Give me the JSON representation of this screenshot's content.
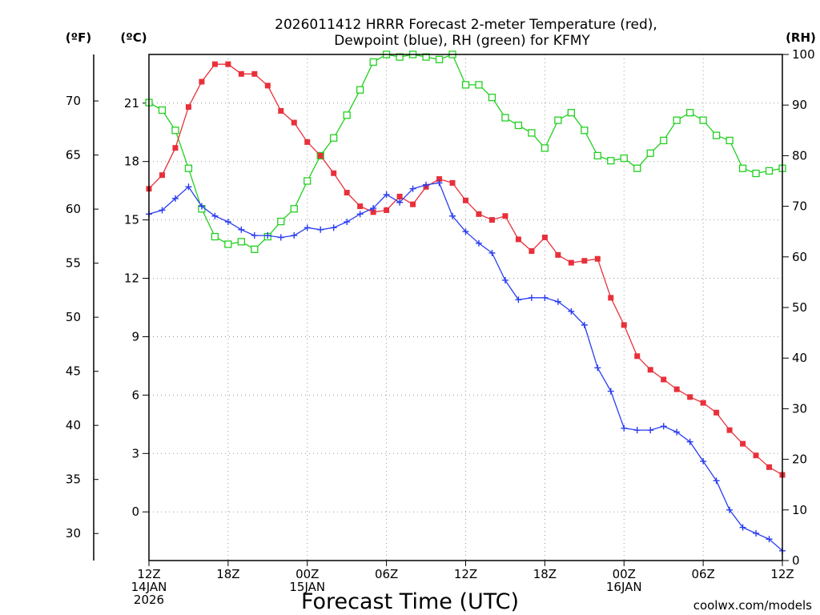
{
  "title_lines": [
    "2026011412 HRRR Forecast 2-meter Temperature (red),",
    "Dewpoint (blue), RH (green) for KFMY"
  ],
  "units": {
    "f": "(ºF)",
    "c": "(ºC)",
    "rh": "(RH)"
  },
  "xlabel": "Forecast Time (UTC)",
  "credit": "coolwx.com/models",
  "colors": {
    "temperature": "#e8303a",
    "dewpoint": "#2a3df0",
    "rh": "#22d020",
    "credit": "#d03040",
    "grid": "#9a9a9a"
  },
  "chart_data": {
    "type": "line",
    "title": "2026011412 HRRR Forecast 2-meter Temperature (red), Dewpoint (blue), RH (green) for KFMY",
    "xlabel": "Forecast Time (UTC)",
    "x": [
      0,
      1,
      2,
      3,
      4,
      5,
      6,
      7,
      8,
      9,
      10,
      11,
      12,
      13,
      14,
      15,
      16,
      17,
      18,
      19,
      20,
      21,
      22,
      23,
      24,
      25,
      26,
      27,
      28,
      29,
      30,
      31,
      32,
      33,
      34,
      35,
      36,
      37,
      38,
      39,
      40,
      41,
      42,
      43,
      44,
      45,
      46,
      47,
      48
    ],
    "xlim": [
      0,
      48
    ],
    "x_ticks": [
      {
        "h": 0,
        "lines": [
          "12Z",
          "14JAN",
          "2026"
        ]
      },
      {
        "h": 6,
        "lines": [
          "18Z"
        ]
      },
      {
        "h": 12,
        "lines": [
          "00Z",
          "15JAN"
        ]
      },
      {
        "h": 18,
        "lines": [
          "06Z"
        ]
      },
      {
        "h": 24,
        "lines": [
          "12Z"
        ]
      },
      {
        "h": 30,
        "lines": [
          "18Z"
        ]
      },
      {
        "h": 36,
        "lines": [
          "00Z",
          "16JAN"
        ]
      },
      {
        "h": 42,
        "lines": [
          "06Z"
        ]
      },
      {
        "h": 48,
        "lines": [
          "12Z"
        ]
      }
    ],
    "axes": {
      "celsius": {
        "label": "(ºC)",
        "range": [
          -2.5,
          23.5
        ],
        "ticks": [
          "0",
          "3",
          "6",
          "9",
          "12",
          "15",
          "18",
          "21"
        ]
      },
      "fahrenheit": {
        "label": "(ºF)",
        "ticks": [
          "30",
          "35",
          "40",
          "45",
          "50",
          "55",
          "60",
          "65",
          "70"
        ]
      },
      "rh": {
        "label": "(RH)",
        "range": [
          0,
          100
        ],
        "ticks": [
          "0",
          "10",
          "20",
          "30",
          "40",
          "50",
          "60",
          "70",
          "80",
          "90",
          "100"
        ]
      }
    },
    "grid": true,
    "series": [
      {
        "name": "Temperature",
        "axis": "celsius",
        "marker": "filled-square",
        "values": [
          16.6,
          17.3,
          18.7,
          20.8,
          22.1,
          23.0,
          23.0,
          22.5,
          22.5,
          21.9,
          20.6,
          20.0,
          19.0,
          18.3,
          17.4,
          16.4,
          15.7,
          15.4,
          15.5,
          16.2,
          15.8,
          16.7,
          17.1,
          16.9,
          16.0,
          15.3,
          15.0,
          15.2,
          14.0,
          13.4,
          14.1,
          13.2,
          12.8,
          12.9,
          13.0,
          11.0,
          9.6,
          8.0,
          7.3,
          6.8,
          6.3,
          5.9,
          5.6,
          5.1,
          4.2,
          3.5,
          2.9,
          2.3,
          1.9
        ]
      },
      {
        "name": "Dewpoint",
        "axis": "celsius",
        "marker": "plus",
        "values": [
          15.3,
          15.5,
          16.1,
          16.7,
          15.7,
          15.2,
          14.9,
          14.5,
          14.2,
          14.2,
          14.1,
          14.2,
          14.6,
          14.5,
          14.6,
          14.9,
          15.3,
          15.6,
          16.3,
          15.9,
          16.6,
          16.8,
          16.9,
          15.2,
          14.4,
          13.8,
          13.3,
          11.9,
          10.9,
          11.0,
          11.0,
          10.8,
          10.3,
          9.6,
          7.4,
          6.2,
          4.3,
          4.2,
          4.2,
          4.4,
          4.1,
          3.6,
          2.6,
          1.6,
          0.1,
          -0.8,
          -1.1,
          -1.4,
          -2.0
        ]
      },
      {
        "name": "RH",
        "axis": "rh",
        "marker": "open-square",
        "values": [
          90.5,
          89.0,
          85.0,
          77.5,
          69.5,
          64.0,
          62.5,
          63.0,
          61.5,
          64.0,
          67.0,
          69.5,
          75.0,
          80.0,
          83.5,
          88.0,
          93.0,
          98.5,
          100.0,
          99.5,
          100.0,
          99.5,
          99.0,
          100.0,
          94.0,
          94.0,
          91.5,
          87.5,
          86.0,
          84.5,
          81.5,
          87.0,
          88.5,
          85.0,
          80.0,
          79.0,
          79.5,
          77.5,
          80.5,
          83.0,
          87.0,
          88.5,
          87.0,
          84.0,
          83.0,
          77.5,
          76.5,
          77.0,
          77.5
        ]
      }
    ]
  }
}
